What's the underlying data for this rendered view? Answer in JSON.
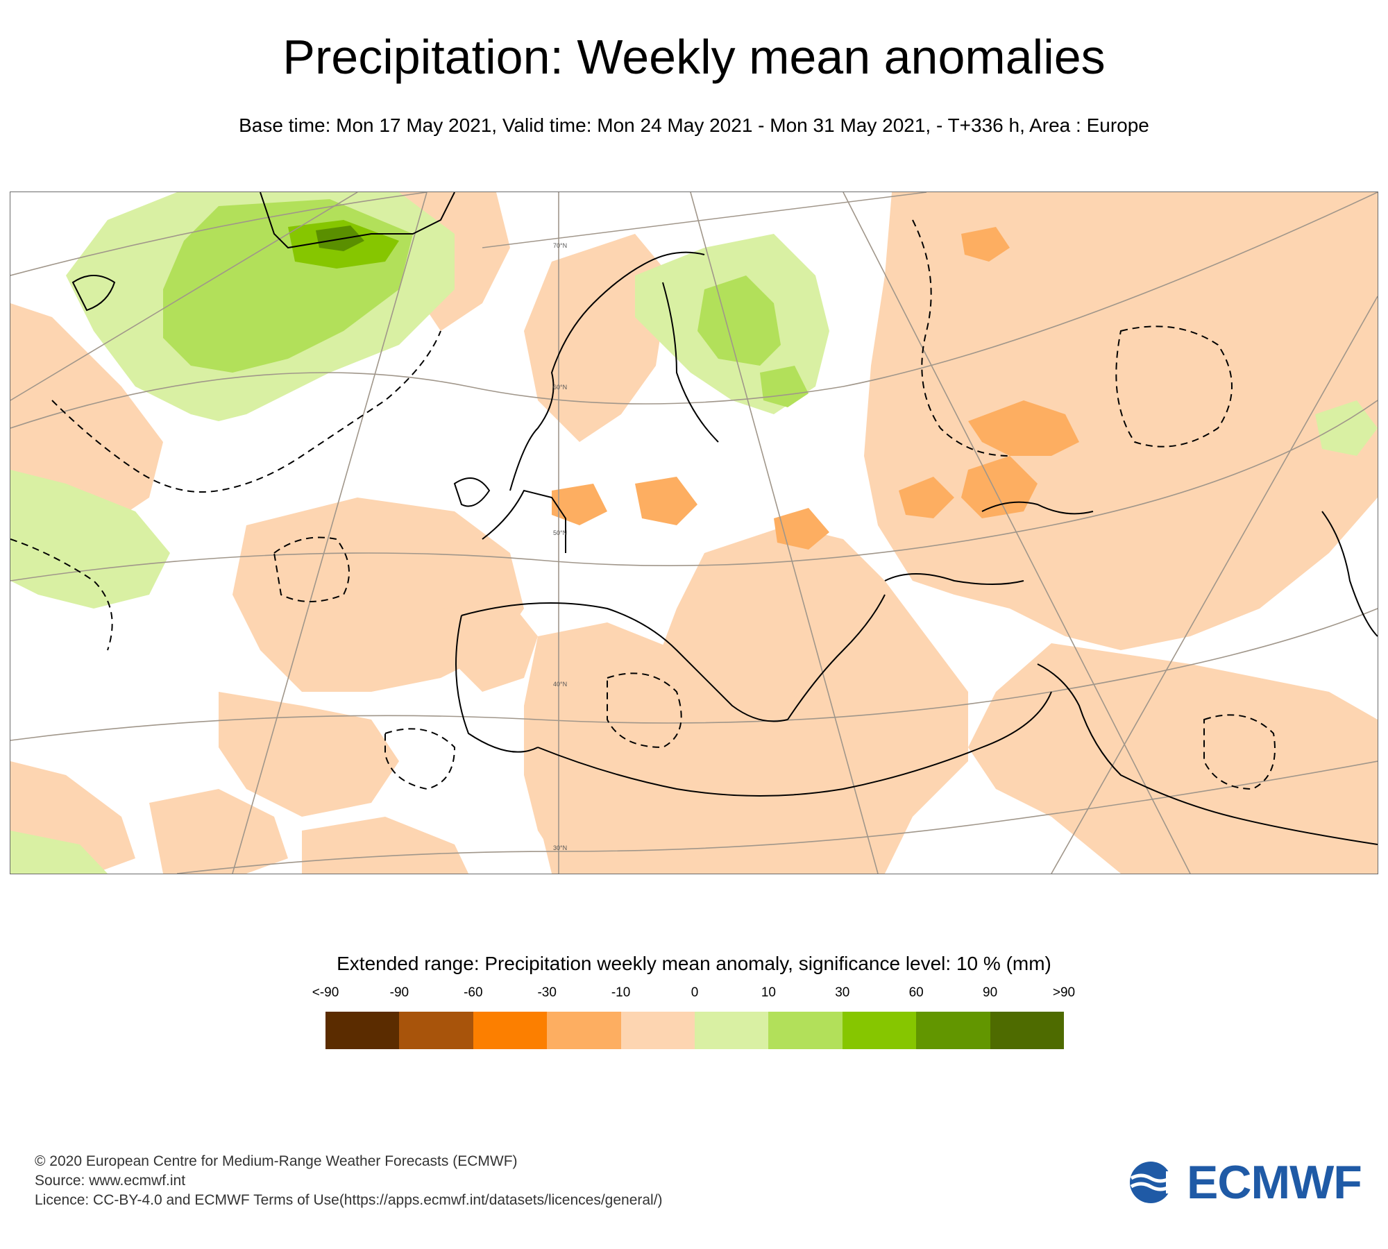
{
  "title": "Precipitation: Weekly mean anomalies",
  "subtitle": "Base time: Mon 17 May 2021, Valid time: Mon 24 May 2021 - Mon 31 May 2021, - T+336 h, Area : Europe",
  "map": {
    "latitude_labels": [
      "70°N",
      "60°N",
      "50°N",
      "40°N",
      "30°N"
    ],
    "colors": {
      "light_orange": "#fdd5b1",
      "orange": "#fdae61",
      "light_green": "#d9f0a3",
      "green": "#b2e05a",
      "bright_green": "#86c600",
      "dark_green": "#5a8f00",
      "graticule": "#a0968a",
      "coast": "#000000"
    }
  },
  "legend": {
    "title": "Extended range: Precipitation weekly mean anomaly, significance level: 10 % (mm)",
    "tick_labels": [
      "<-90",
      "-90",
      "-60",
      "-30",
      "-10",
      "0",
      "10",
      "30",
      "60",
      "90",
      ">90"
    ],
    "swatch_colors": [
      "#5b2c00",
      "#a8540b",
      "#fc7f00",
      "#fdae61",
      "#fdd5b1",
      "#d9f0a3",
      "#b2e05a",
      "#86c600",
      "#629600",
      "#4e6b00"
    ]
  },
  "footer": {
    "copyright": "© 2020 European Centre for Medium-Range Weather Forecasts (ECMWF)",
    "source": "Source: www.ecmwf.int",
    "licence": "Licence: CC-BY-4.0 and ECMWF Terms of Use(https://apps.ecmwf.int/datasets/licences/general/)"
  },
  "logo": {
    "text": "ECMWF",
    "color": "#1f5aa6"
  }
}
